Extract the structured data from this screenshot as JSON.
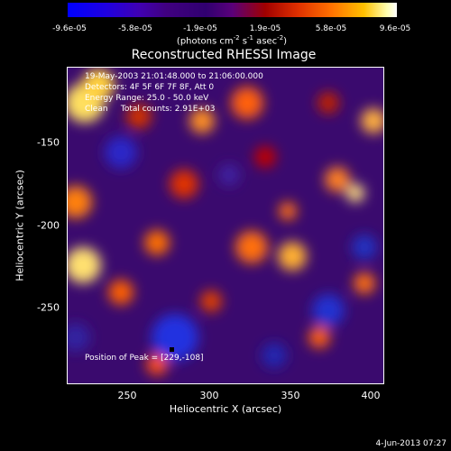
{
  "colorbar": {
    "ticks": [
      "-9.6e-05",
      "-5.8e-05",
      "-1.9e-05",
      "1.9e-05",
      "5.8e-05",
      "9.6e-05"
    ],
    "unit_prefix": "(photons cm",
    "unit_exp1": "-2",
    "unit_mid": " s",
    "unit_exp2": "-1",
    "unit_mid2": " asec",
    "unit_exp3": "-2",
    "unit_suffix": ")"
  },
  "chart_data": {
    "type": "heatmap",
    "title": "Reconstructed RHESSI Image",
    "xlabel": "Heliocentric X (arcsec)",
    "ylabel": "Heliocentric Y (arcsec)",
    "xlim": [
      213,
      405
    ],
    "ylim": [
      -298,
      -108
    ],
    "x_ticks": [
      "250",
      "300",
      "350",
      "400"
    ],
    "y_ticks": [
      "-150",
      "-200",
      "-250"
    ],
    "value_range": [
      -9.6e-05,
      9.6e-05
    ],
    "peak": {
      "x": 229,
      "y": -108
    },
    "annotations": {
      "time": "19-May-2003 21:01:48.000 to 21:06:00.000",
      "detectors": "Detectors: 4F 5F 6F 7F 8F, Att 0",
      "energy": "Energy Range: 25.0 - 50.0 keV",
      "clean": "Clean     Total counts: 2.91E+03",
      "peak_text": "Position of Peak = [229,-108]"
    }
  },
  "footer": {
    "timestamp": "4-Jun-2013 07:27"
  }
}
